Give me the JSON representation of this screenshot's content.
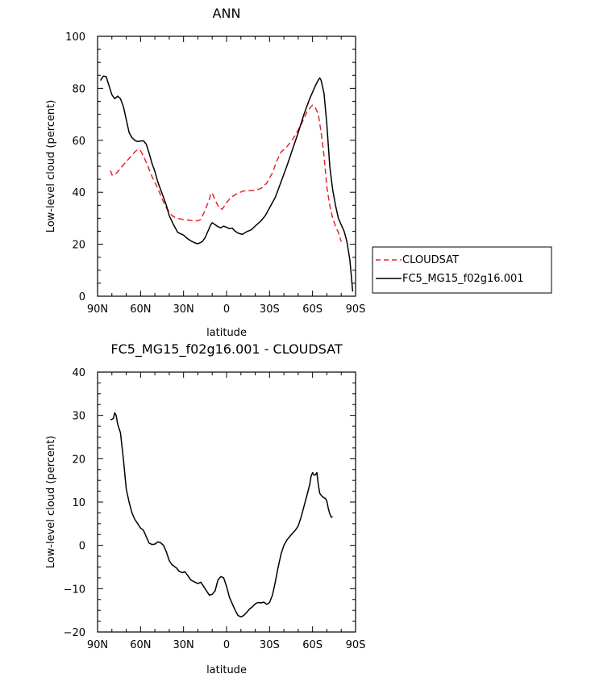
{
  "chart_data": [
    {
      "type": "line",
      "title": "ANN",
      "xlabel": "latitude",
      "ylabel": "Low-level cloud (percent)",
      "xlim": [
        90,
        -90
      ],
      "ylim": [
        0,
        100
      ],
      "xticks": [
        90,
        60,
        30,
        0,
        -30,
        -60,
        -90
      ],
      "xtick_labels": [
        "90N",
        "60N",
        "30N",
        "0",
        "30S",
        "60S",
        "90S"
      ],
      "yticks": [
        0,
        20,
        40,
        60,
        80,
        100
      ],
      "ytick_labels": [
        "0",
        "20",
        "40",
        "60",
        "80",
        "100"
      ],
      "legend_position": "right",
      "series": [
        {
          "name": "CLOUDSAT",
          "color": "#e8262a",
          "dash": "dashed",
          "points": [
            [
              81,
              48.4
            ],
            [
              80,
              46.7
            ],
            [
              78,
              46.6
            ],
            [
              75,
              48.5
            ],
            [
              72,
              50.5
            ],
            [
              68,
              53
            ],
            [
              64,
              55.5
            ],
            [
              62,
              56.5
            ],
            [
              60,
              56
            ],
            [
              58,
              54
            ],
            [
              55,
              50.2
            ],
            [
              52,
              46
            ],
            [
              48,
              41.5
            ],
            [
              45,
              37.5
            ],
            [
              42,
              34
            ],
            [
              38,
              31
            ],
            [
              35,
              30
            ],
            [
              30,
              29.5
            ],
            [
              25,
              29.2
            ],
            [
              20,
              29
            ],
            [
              18,
              29.5
            ],
            [
              15,
              33
            ],
            [
              12,
              37.3
            ],
            [
              11,
              39.6
            ],
            [
              10,
              39.7
            ],
            [
              8,
              37
            ],
            [
              5,
              33.8
            ],
            [
              3,
              33.5
            ],
            [
              0,
              36
            ],
            [
              -3,
              38
            ],
            [
              -8,
              39.7
            ],
            [
              -12,
              40.5
            ],
            [
              -16,
              40.6
            ],
            [
              -20,
              40.7
            ],
            [
              -24,
              41.5
            ],
            [
              -28,
              43.5
            ],
            [
              -32,
              47.5
            ],
            [
              -35,
              52
            ],
            [
              -38,
              55.5
            ],
            [
              -42,
              57.5
            ],
            [
              -45,
              59.5
            ],
            [
              -48,
              62
            ],
            [
              -52,
              66
            ],
            [
              -56,
              70.8
            ],
            [
              -59,
              73
            ],
            [
              -60,
              73.5
            ],
            [
              -62,
              72.5
            ],
            [
              -64,
              70
            ],
            [
              -66,
              63
            ],
            [
              -68,
              54
            ],
            [
              -70,
              42
            ],
            [
              -72,
              35
            ],
            [
              -74,
              30
            ],
            [
              -76,
              27
            ],
            [
              -78,
              24.5
            ],
            [
              -80,
              21
            ]
          ]
        },
        {
          "name": "FC5_MG15_f02g16.001",
          "color": "#000000",
          "dash": "solid",
          "points": [
            [
              88,
              83
            ],
            [
              86,
              84.7
            ],
            [
              84,
              84.5
            ],
            [
              82,
              81
            ],
            [
              80,
              77.5
            ],
            [
              78,
              76
            ],
            [
              76,
              77
            ],
            [
              74,
              76
            ],
            [
              72,
              73
            ],
            [
              70,
              68
            ],
            [
              68,
              63
            ],
            [
              66,
              61
            ],
            [
              64,
              60
            ],
            [
              62,
              59.5
            ],
            [
              60,
              59.7
            ],
            [
              58,
              59.8
            ],
            [
              56,
              58.5
            ],
            [
              54,
              55
            ],
            [
              52,
              51
            ],
            [
              50,
              48
            ],
            [
              48,
              44
            ],
            [
              45,
              39.5
            ],
            [
              42,
              35
            ],
            [
              40,
              31
            ],
            [
              37,
              27.5
            ],
            [
              34,
              24.5
            ],
            [
              30,
              23.5
            ],
            [
              28,
              22.5
            ],
            [
              25,
              21.3
            ],
            [
              22,
              20.5
            ],
            [
              20,
              20.2
            ],
            [
              17,
              21
            ],
            [
              15,
              22.5
            ],
            [
              13,
              25
            ],
            [
              11,
              27.5
            ],
            [
              10,
              28.3
            ],
            [
              8,
              27.5
            ],
            [
              6,
              26.8
            ],
            [
              4,
              26.3
            ],
            [
              2,
              27
            ],
            [
              0,
              26.5
            ],
            [
              -2,
              26
            ],
            [
              -4,
              26.2
            ],
            [
              -6,
              25
            ],
            [
              -8,
              24.3
            ],
            [
              -11,
              23.8
            ],
            [
              -14,
              24.8
            ],
            [
              -17,
              25.5
            ],
            [
              -20,
              27
            ],
            [
              -24,
              29
            ],
            [
              -27,
              31
            ],
            [
              -30,
              34
            ],
            [
              -34,
              38
            ],
            [
              -38,
              44
            ],
            [
              -42,
              50
            ],
            [
              -46,
              56.5
            ],
            [
              -50,
              63
            ],
            [
              -54,
              70
            ],
            [
              -58,
              76
            ],
            [
              -62,
              81
            ],
            [
              -64,
              83.2
            ],
            [
              -65,
              84
            ],
            [
              -66,
              83
            ],
            [
              -68,
              78
            ],
            [
              -70,
              66
            ],
            [
              -72,
              50
            ],
            [
              -74,
              41
            ],
            [
              -76,
              35
            ],
            [
              -78,
              30
            ],
            [
              -80,
              27.5
            ],
            [
              -82,
              25
            ],
            [
              -84,
              21
            ],
            [
              -86,
              14
            ],
            [
              -87,
              8
            ],
            [
              -88,
              1.8
            ]
          ]
        }
      ]
    },
    {
      "type": "line",
      "title": "FC5_MG15_f02g16.001 - CLOUDSAT",
      "xlabel": "latitude",
      "ylabel": "Low-level cloud (percent)",
      "xlim": [
        90,
        -90
      ],
      "ylim": [
        -20,
        40
      ],
      "xticks": [
        90,
        60,
        30,
        0,
        -30,
        -60,
        -90
      ],
      "xtick_labels": [
        "90N",
        "60N",
        "30N",
        "0",
        "30S",
        "60S",
        "90S"
      ],
      "yticks": [
        -20,
        -10,
        0,
        10,
        20,
        30,
        40
      ],
      "ytick_labels": [
        "−20",
        "−10",
        "0",
        "10",
        "20",
        "30",
        "40"
      ],
      "series": [
        {
          "color": "#000000",
          "dash": "solid",
          "points": [
            [
              81,
              29
            ],
            [
              80,
              29.1
            ],
            [
              79,
              29.3
            ],
            [
              78,
              30.6
            ],
            [
              77,
              30
            ],
            [
              76,
              28
            ],
            [
              74,
              26
            ],
            [
              72,
              20
            ],
            [
              70,
              13
            ],
            [
              68,
              10
            ],
            [
              66,
              7.5
            ],
            [
              64,
              6
            ],
            [
              62,
              5
            ],
            [
              60,
              4
            ],
            [
              58,
              3.5
            ],
            [
              56,
              2
            ],
            [
              54,
              0.5
            ],
            [
              52,
              0.2
            ],
            [
              50,
              0.3
            ],
            [
              48,
              0.8
            ],
            [
              46,
              0.6
            ],
            [
              44,
              0
            ],
            [
              42,
              -1.5
            ],
            [
              40,
              -3.5
            ],
            [
              38,
              -4.5
            ],
            [
              35,
              -5.2
            ],
            [
              33,
              -6
            ],
            [
              31,
              -6.3
            ],
            [
              29,
              -6.1
            ],
            [
              27,
              -7
            ],
            [
              25,
              -8
            ],
            [
              22,
              -8.5
            ],
            [
              20,
              -8.8
            ],
            [
              18,
              -8.5
            ],
            [
              16,
              -9.5
            ],
            [
              14,
              -10.5
            ],
            [
              12,
              -11.5
            ],
            [
              10,
              -11.3
            ],
            [
              8,
              -10.5
            ],
            [
              6,
              -8
            ],
            [
              4,
              -7.2
            ],
            [
              2,
              -7.5
            ],
            [
              0,
              -9.5
            ],
            [
              -2,
              -12
            ],
            [
              -4,
              -13.5
            ],
            [
              -6,
              -15
            ],
            [
              -8,
              -16.2
            ],
            [
              -10,
              -16.5
            ],
            [
              -12,
              -16.2
            ],
            [
              -14,
              -15.5
            ],
            [
              -16,
              -14.7
            ],
            [
              -18,
              -14.2
            ],
            [
              -20,
              -13.5
            ],
            [
              -22,
              -13.2
            ],
            [
              -24,
              -13.3
            ],
            [
              -26,
              -13.1
            ],
            [
              -28,
              -13.6
            ],
            [
              -30,
              -13.2
            ],
            [
              -32,
              -11.5
            ],
            [
              -34,
              -8.5
            ],
            [
              -36,
              -5
            ],
            [
              -38,
              -2
            ],
            [
              -40,
              0
            ],
            [
              -42,
              1.2
            ],
            [
              -44,
              2
            ],
            [
              -46,
              2.8
            ],
            [
              -48,
              3.5
            ],
            [
              -50,
              4.5
            ],
            [
              -52,
              6.5
            ],
            [
              -54,
              9
            ],
            [
              -56,
              11.5
            ],
            [
              -58,
              14
            ],
            [
              -59,
              16
            ],
            [
              -60,
              16.8
            ],
            [
              -61,
              16.2
            ],
            [
              -62,
              16.3
            ],
            [
              -63,
              16.8
            ],
            [
              -64,
              14
            ],
            [
              -65,
              12
            ],
            [
              -67,
              11.2
            ],
            [
              -69,
              10.8
            ],
            [
              -70,
              10.2
            ],
            [
              -71,
              8.5
            ],
            [
              -72,
              7.3
            ],
            [
              -73,
              6.5
            ],
            [
              -74,
              6.6
            ]
          ]
        }
      ]
    }
  ]
}
